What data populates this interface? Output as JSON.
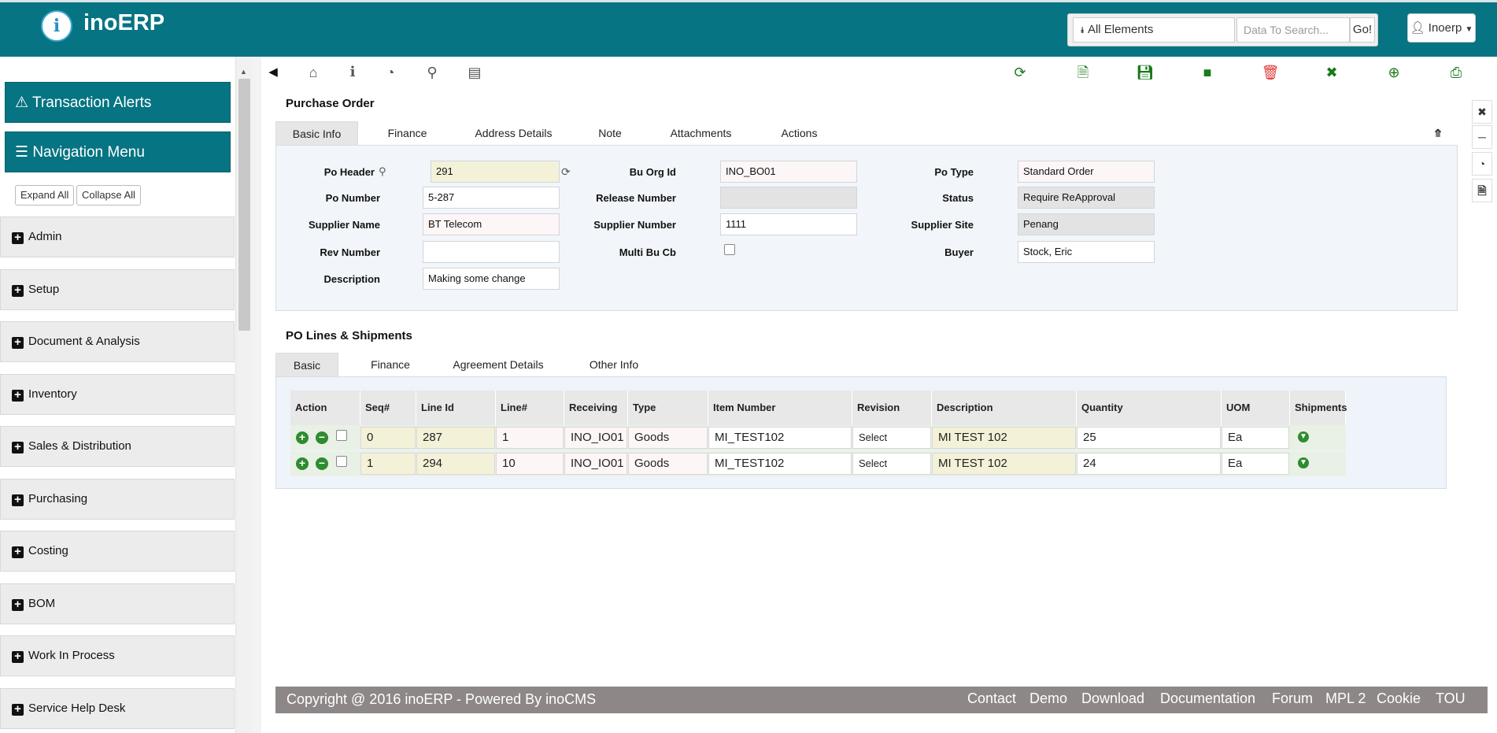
{
  "header": {
    "logo_glyph": "i",
    "brand": "inoERP",
    "search_scope": "All Elements",
    "search_placeholder": "Data To Search...",
    "search_go": "Go!",
    "user_label": "Inoerp"
  },
  "sidebar": {
    "transaction_alerts": "Transaction Alerts",
    "navigation_menu": "Navigation Menu",
    "expand_all": "Expand All",
    "collapse_all": "Collapse All",
    "items": [
      "Admin",
      "Setup",
      "Document & Analysis",
      "Inventory",
      "Sales & Distribution",
      "Purchasing",
      "Costing",
      "BOM",
      "Work In Process",
      "Service Help Desk"
    ]
  },
  "po": {
    "title": "Purchase Order",
    "tabs": [
      "Basic Info",
      "Finance",
      "Address Details",
      "Note",
      "Attachments",
      "Actions"
    ],
    "labels": {
      "po_header": "Po Header",
      "po_number": "Po Number",
      "supplier_name": "Supplier Name",
      "rev_number": "Rev Number",
      "description": "Description",
      "bu_org_id": "Bu Org Id",
      "release_number": "Release Number",
      "supplier_number": "Supplier Number",
      "multi_bu_cb": "Multi Bu Cb",
      "po_type": "Po Type",
      "status": "Status",
      "supplier_site": "Supplier Site",
      "buyer": "Buyer"
    },
    "values": {
      "po_header": "291",
      "po_number": "5-287",
      "supplier_name": "BT Telecom",
      "rev_number": "",
      "description": "Making some change",
      "bu_org_id": "INO_BO01",
      "release_number": "",
      "supplier_number": "1111",
      "po_type": "Standard Order",
      "status": "Require ReApproval",
      "supplier_site": "Penang",
      "buyer": "Stock, Eric"
    }
  },
  "lines": {
    "title": "PO Lines & Shipments",
    "tabs": [
      "Basic",
      "Finance",
      "Agreement Details",
      "Other Info"
    ],
    "columns": [
      "Action",
      "Seq#",
      "Line Id",
      "Line#",
      "Receiving",
      "Type",
      "Item Number",
      "Revision",
      "Description",
      "Quantity",
      "UOM",
      "Shipments"
    ],
    "rows": [
      {
        "seq": "0",
        "line_id": "287",
        "line_no": "1",
        "receiving": "INO_IO01",
        "type": "Goods",
        "item": "MI_TEST102",
        "revision": "Select",
        "description": "MI TEST 102",
        "quantity": "25",
        "uom": "Ea"
      },
      {
        "seq": "1",
        "line_id": "294",
        "line_no": "10",
        "receiving": "INO_IO01",
        "type": "Goods",
        "item": "MI_TEST102",
        "revision": "Select",
        "description": "MI TEST 102",
        "quantity": "24",
        "uom": "Ea"
      }
    ]
  },
  "footer": {
    "copyright": "Copyright @ 2016 inoERP - Powered By inoCMS",
    "links": [
      "Contact",
      "Demo",
      "Download",
      "Documentation",
      "Forum",
      "MPL 2",
      "Cookie",
      "TOU"
    ]
  },
  "colors": {
    "header_teal": "#067482",
    "refresh_green": "#1a7a1a",
    "delete_red": "#e03535",
    "footer_gray": "#8e8787"
  }
}
